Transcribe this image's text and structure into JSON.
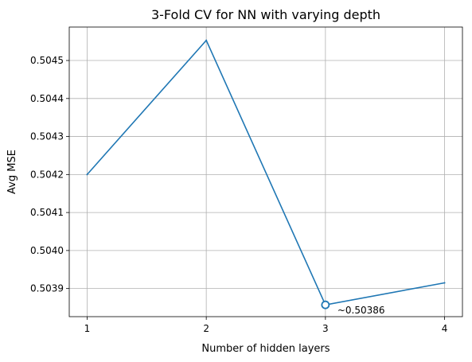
{
  "chart_data": {
    "type": "line",
    "title": "3-Fold CV for NN with varying depth",
    "xlabel": "Number of hidden layers",
    "ylabel": "Avg MSE",
    "x": [
      1,
      2,
      3,
      4
    ],
    "xticks": [
      "1",
      "2",
      "3",
      "4"
    ],
    "xlim": [
      0.85,
      4.15
    ],
    "y": [
      0.5042,
      0.504553,
      0.503857,
      0.503915
    ],
    "yticks": [
      "0.5039",
      "0.5040",
      "0.5041",
      "0.5042",
      "0.5043",
      "0.5044",
      "0.5045"
    ],
    "ylim": [
      0.503826,
      0.504588
    ],
    "grid": true,
    "line_color": "#1f77b4",
    "highlight": {
      "x": 3,
      "y": 0.503857,
      "label": "~0.50386"
    }
  }
}
